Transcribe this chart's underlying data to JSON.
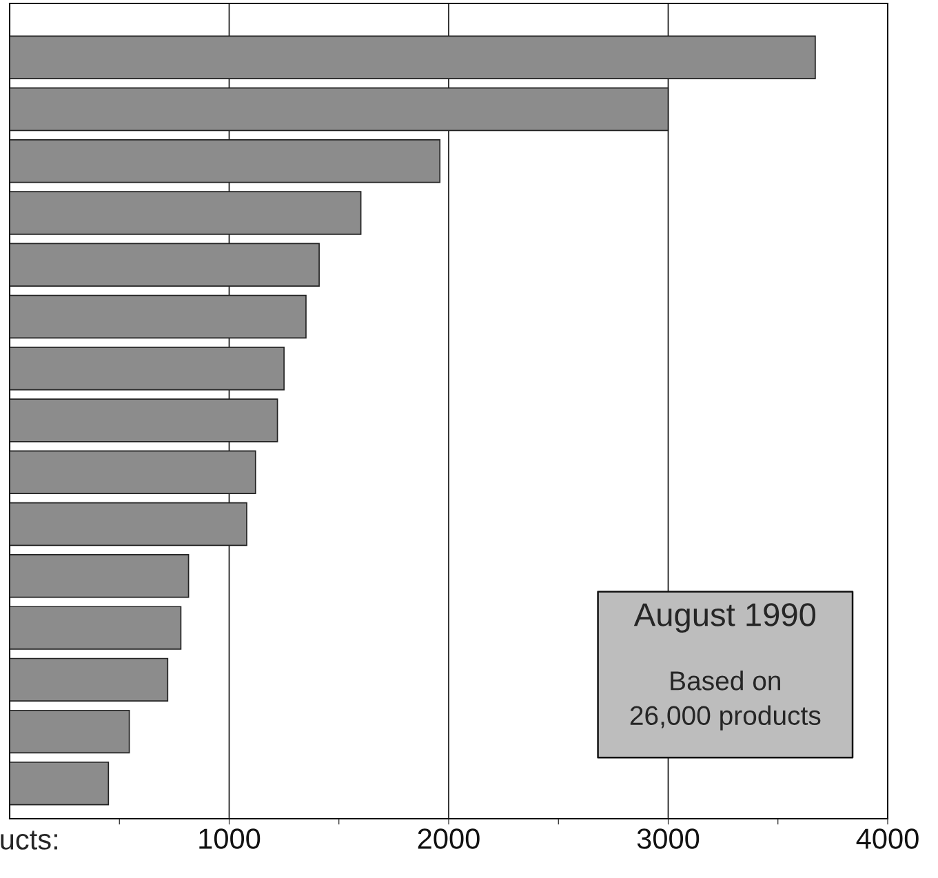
{
  "chart_data": {
    "type": "bar",
    "orientation": "horizontal",
    "xlabel": "ucts:",
    "categories": [
      null,
      null,
      null,
      null,
      null,
      null,
      null,
      null,
      null,
      null,
      null,
      null,
      null,
      null,
      null
    ],
    "values": [
      3670,
      3000,
      1960,
      1600,
      1410,
      1350,
      1250,
      1220,
      1120,
      1080,
      815,
      780,
      720,
      545,
      450
    ],
    "color": "#8c8c8c",
    "xlim": [
      0,
      4000
    ],
    "xticks": [
      {
        "value": 500,
        "label": null
      },
      1000,
      {
        "value": 1500,
        "label": null
      },
      2000,
      {
        "value": 2500,
        "label": null
      },
      3000,
      {
        "value": 3500,
        "label": null
      },
      4000
    ],
    "grid": "x",
    "tick_labels": "x",
    "annotations": [
      "August 1990",
      "Based on\n26,000 products"
    ]
  }
}
